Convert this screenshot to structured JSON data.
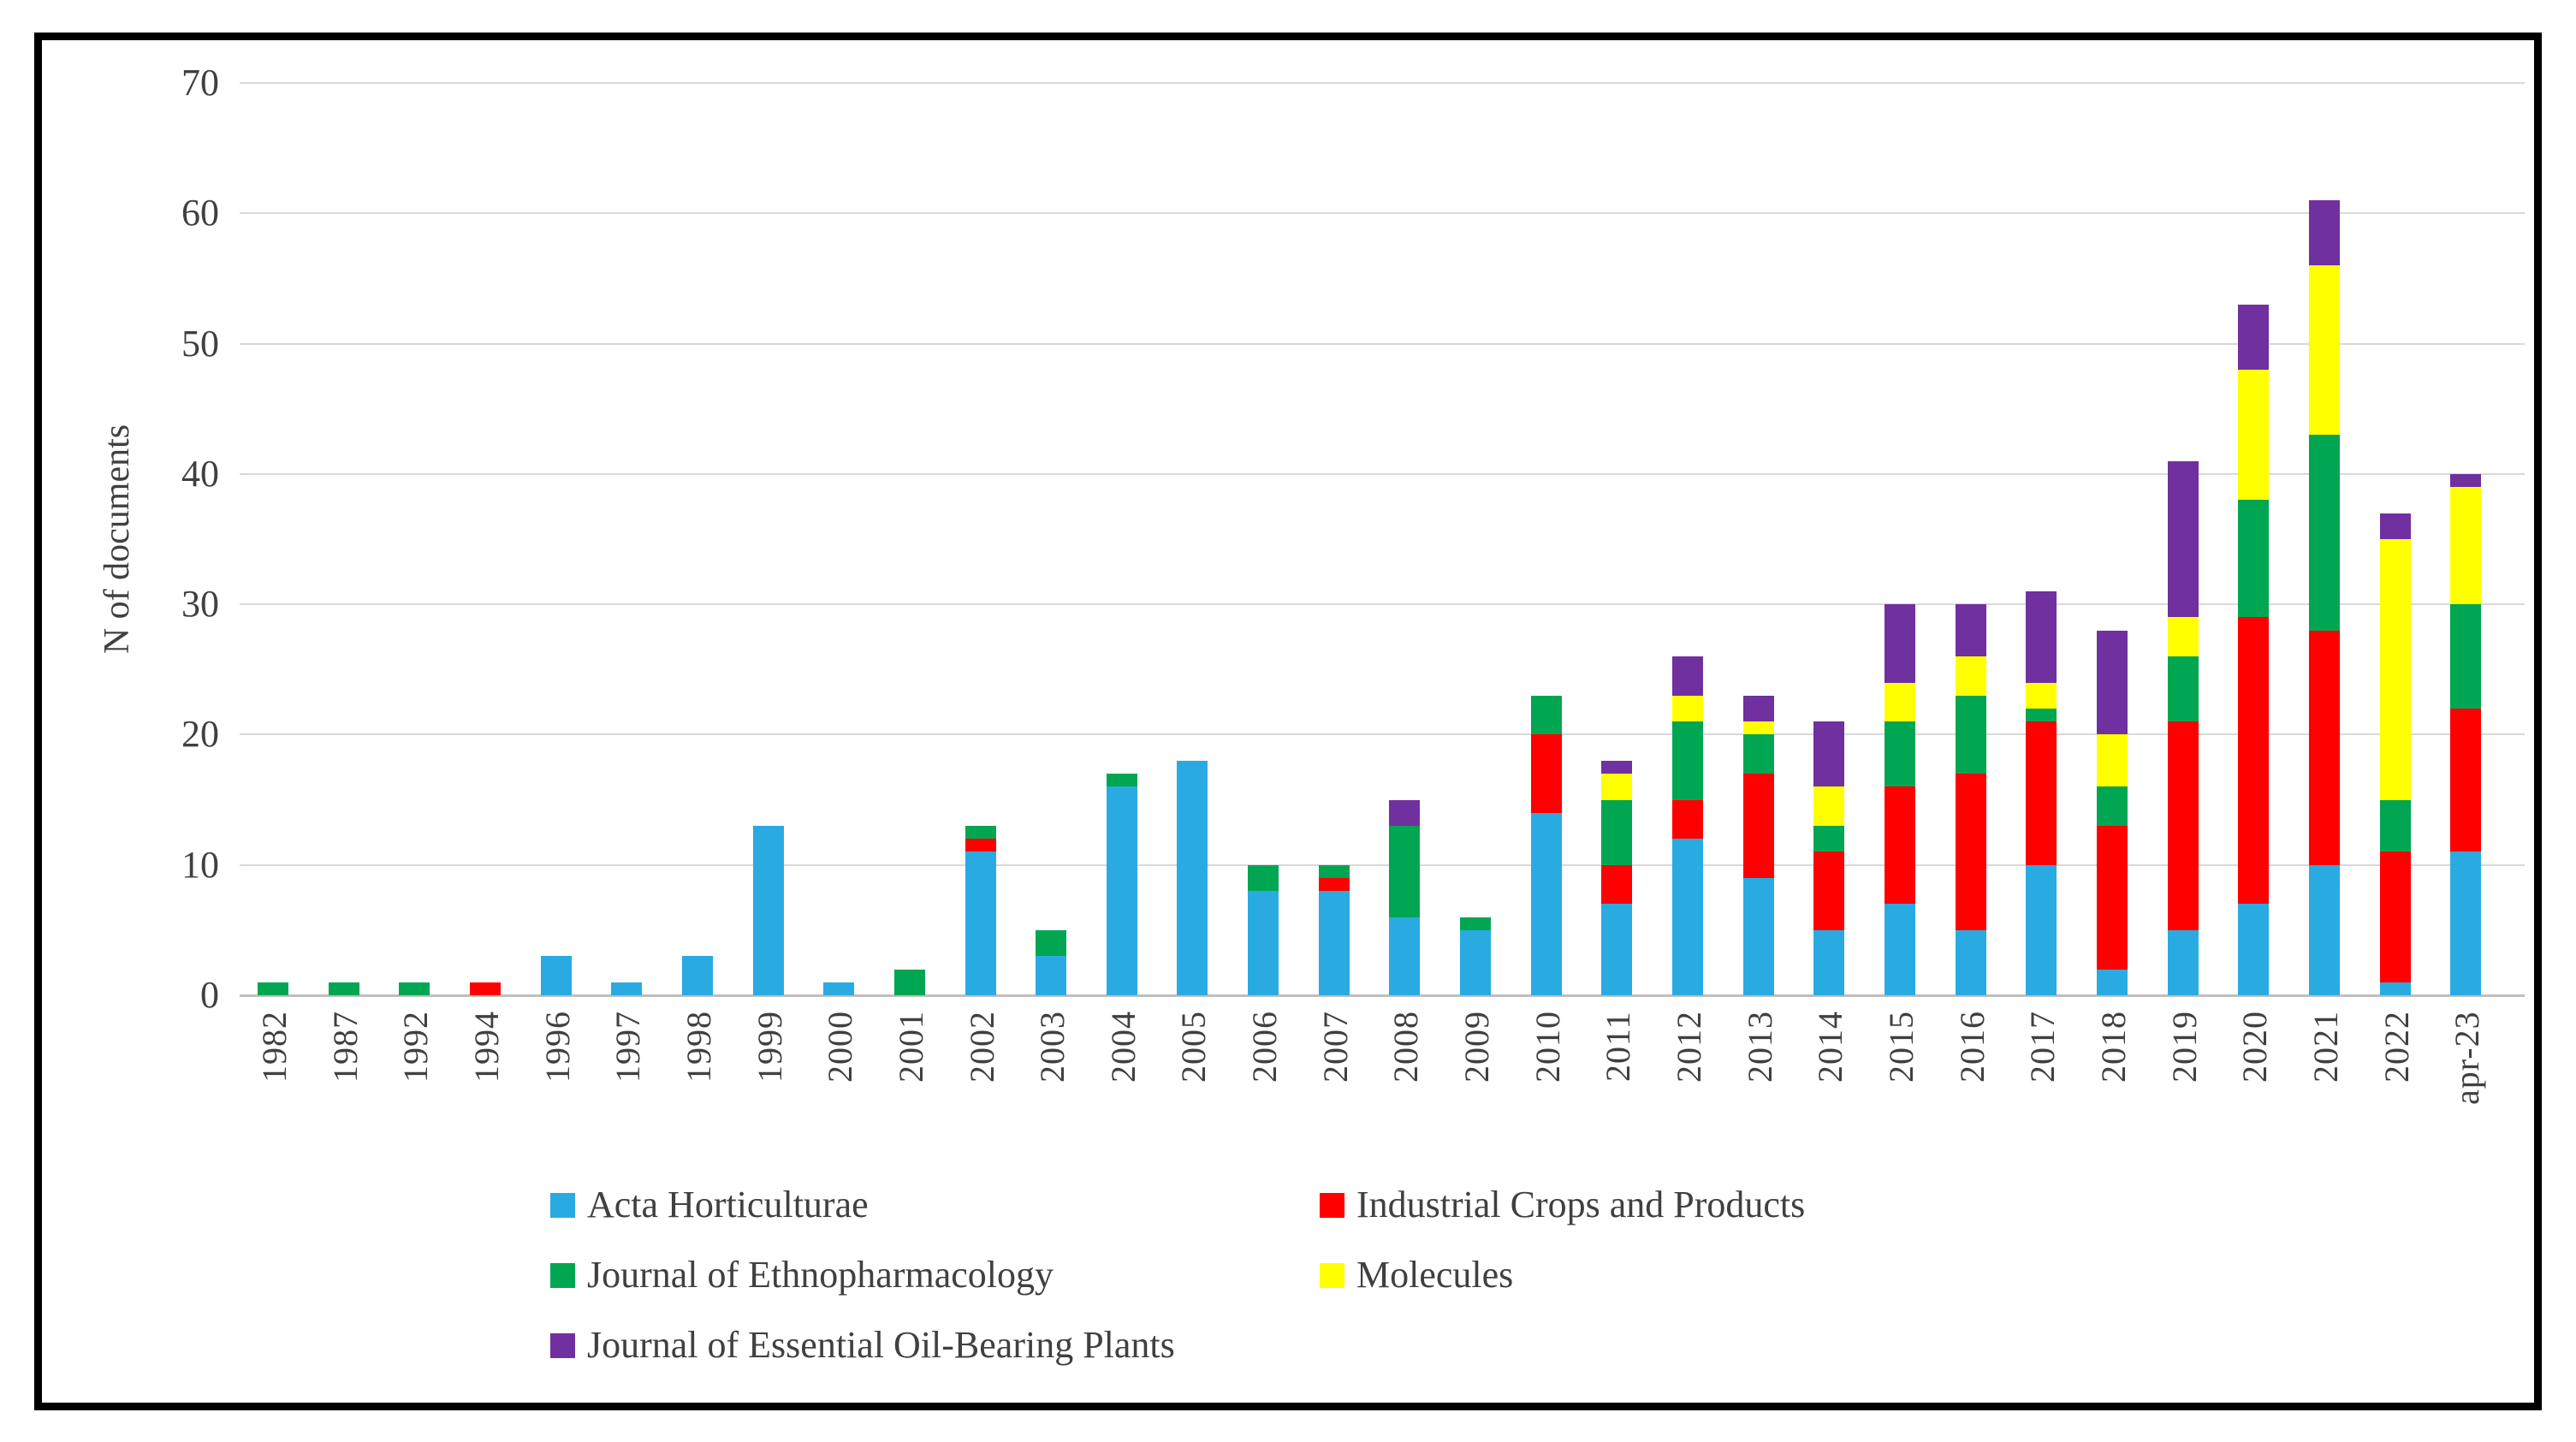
{
  "figure": {
    "background": "#FFFFFF",
    "frame_color": "#000000"
  },
  "colors": {
    "gridline": "#D9D9D9",
    "axis_line": "#BFBFBF",
    "text": "#404040"
  },
  "chart_data": {
    "type": "bar",
    "stacked": true,
    "title": "",
    "xlabel": "",
    "ylabel": "N of documents",
    "ylim": [
      0,
      70
    ],
    "y_ticks": [
      0,
      10,
      20,
      30,
      40,
      50,
      60,
      70
    ],
    "grid": "horizontal",
    "legend_position": "bottom",
    "categories": [
      "1982",
      "1987",
      "1992",
      "1994",
      "1996",
      "1997",
      "1998",
      "1999",
      "2000",
      "2001",
      "2002",
      "2003",
      "2004",
      "2005",
      "2006",
      "2007",
      "2008",
      "2009",
      "2010",
      "2011",
      "2012",
      "2013",
      "2014",
      "2015",
      "2016",
      "2017",
      "2018",
      "2019",
      "2020",
      "2021",
      "2022",
      "apr-23"
    ],
    "series": [
      {
        "name": "Acta Horticulturae",
        "color": "#29ABE2",
        "values": [
          0,
          0,
          0,
          0,
          3,
          1,
          3,
          13,
          1,
          0,
          11,
          3,
          16,
          18,
          8,
          8,
          6,
          5,
          14,
          7,
          12,
          9,
          5,
          7,
          5,
          10,
          2,
          5,
          7,
          10,
          1,
          11
        ]
      },
      {
        "name": "Industrial Crops and Products",
        "color": "#FF0000",
        "values": [
          0,
          0,
          0,
          1,
          0,
          0,
          0,
          0,
          0,
          0,
          1,
          0,
          0,
          0,
          0,
          1,
          0,
          0,
          6,
          3,
          3,
          8,
          6,
          9,
          12,
          11,
          11,
          16,
          22,
          18,
          10,
          11
        ]
      },
      {
        "name": "Journal of Ethnopharmacology",
        "color": "#00A651",
        "values": [
          1,
          1,
          1,
          0,
          0,
          0,
          0,
          0,
          0,
          2,
          1,
          2,
          1,
          0,
          2,
          1,
          7,
          1,
          3,
          5,
          6,
          3,
          2,
          5,
          6,
          1,
          3,
          5,
          9,
          15,
          4,
          8
        ]
      },
      {
        "name": "Molecules",
        "color": "#FFFF00",
        "values": [
          0,
          0,
          0,
          0,
          0,
          0,
          0,
          0,
          0,
          0,
          0,
          0,
          0,
          0,
          0,
          0,
          0,
          0,
          0,
          2,
          2,
          1,
          3,
          3,
          3,
          2,
          4,
          3,
          10,
          13,
          20,
          9
        ]
      },
      {
        "name": "Journal of Essential Oil-Bearing Plants",
        "color": "#7030A0",
        "values": [
          0,
          0,
          0,
          0,
          0,
          0,
          0,
          0,
          0,
          0,
          0,
          0,
          0,
          0,
          0,
          0,
          2,
          0,
          0,
          1,
          3,
          2,
          5,
          6,
          4,
          7,
          8,
          12,
          5,
          5,
          2,
          1
        ]
      }
    ],
    "totals": [
      1,
      1,
      1,
      1,
      3,
      1,
      3,
      13,
      1,
      2,
      13,
      5,
      17,
      18,
      10,
      10,
      15,
      6,
      23,
      18,
      26,
      23,
      21,
      30,
      30,
      31,
      28,
      41,
      53,
      61,
      37,
      40
    ]
  }
}
